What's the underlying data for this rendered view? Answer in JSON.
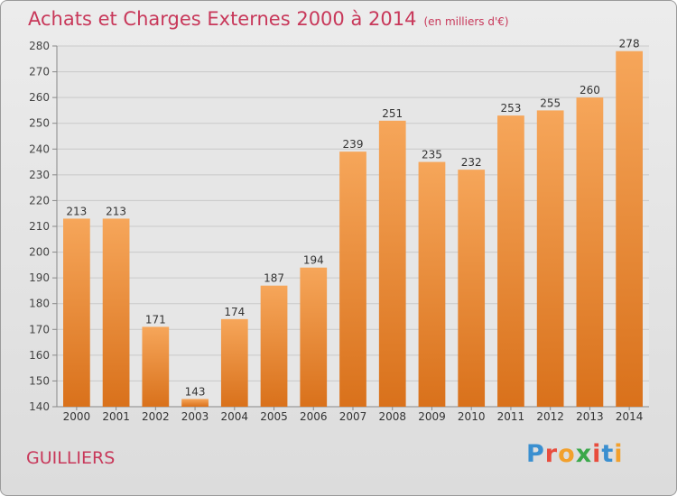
{
  "header": {
    "title": "Achats et Charges Externes 2000 à 2014",
    "subtitle": "(en milliers d'€)"
  },
  "footer": {
    "commune": "GUILLIERS",
    "logo": [
      "P",
      "r",
      "o",
      "x",
      "i",
      "t",
      "i"
    ],
    "logo_colors": [
      "#3a8fd0",
      "#e84c3d",
      "#f2a02c",
      "#3aa84a",
      "#e84c3d",
      "#3a8fd0",
      "#f2a02c"
    ]
  },
  "chart_data": {
    "type": "bar",
    "title": "Achats et Charges Externes 2000 à 2014",
    "subtitle": "(en milliers d'€)",
    "categories": [
      "2000",
      "2001",
      "2002",
      "2003",
      "2004",
      "2005",
      "2006",
      "2007",
      "2008",
      "2009",
      "2010",
      "2011",
      "2012",
      "2013",
      "2014"
    ],
    "values": [
      213,
      213,
      171,
      143,
      174,
      187,
      194,
      239,
      251,
      235,
      232,
      253,
      255,
      260,
      278
    ],
    "ylim": [
      140,
      280
    ],
    "yticks": [
      140,
      150,
      160,
      170,
      180,
      190,
      200,
      210,
      220,
      230,
      240,
      250,
      260,
      270,
      280
    ],
    "xlabel": "",
    "ylabel": "",
    "grid": true,
    "colors": {
      "bar_top": "#f6a65a",
      "bar_bottom": "#d9711b",
      "label": "#333333",
      "grid": "#c9c9c9"
    }
  }
}
